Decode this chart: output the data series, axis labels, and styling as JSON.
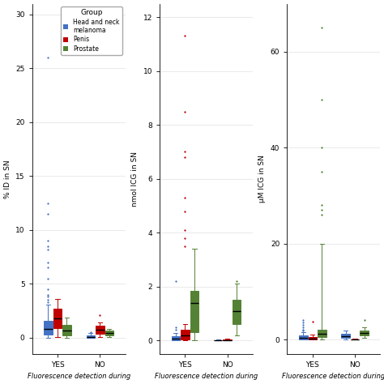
{
  "panels": [
    {
      "ylabel": "% ID in SN",
      "ylim": [
        -1.5,
        31
      ],
      "yticks": [
        0,
        5,
        10,
        15,
        20,
        25,
        30
      ],
      "groups": {
        "YES": {
          "blue": {
            "q1": 0.3,
            "med": 0.8,
            "q3": 1.6,
            "whislo": 0.0,
            "whishi": 3.1,
            "fliers": [
              26.0,
              12.5,
              11.5,
              9.0,
              8.5,
              8.2,
              7.0,
              6.5,
              5.5,
              4.5,
              4.0,
              3.8,
              3.5,
              3.3
            ]
          },
          "red": {
            "q1": 0.9,
            "med": 1.8,
            "q3": 2.7,
            "whislo": 0.05,
            "whishi": 3.6,
            "fliers": []
          },
          "green": {
            "q1": 0.2,
            "med": 0.7,
            "q3": 1.2,
            "whislo": 0.0,
            "whishi": 1.9,
            "fliers": []
          }
        },
        "NO": {
          "blue": {
            "q1": 0.0,
            "med": 0.1,
            "q3": 0.25,
            "whislo": 0.0,
            "whishi": 0.45,
            "fliers": [
              0.55
            ]
          },
          "red": {
            "q1": 0.4,
            "med": 0.75,
            "q3": 1.1,
            "whislo": 0.1,
            "whishi": 1.45,
            "fliers": [
              2.1
            ]
          },
          "green": {
            "q1": 0.2,
            "med": 0.45,
            "q3": 0.65,
            "whislo": 0.05,
            "whishi": 0.85,
            "fliers": []
          }
        }
      }
    },
    {
      "ylabel": "nmol ICG in SN",
      "ylim": [
        -0.5,
        12.5
      ],
      "yticks": [
        0,
        2,
        4,
        6,
        8,
        10,
        12
      ],
      "groups": {
        "YES": {
          "blue": {
            "q1": 0.02,
            "med": 0.06,
            "q3": 0.15,
            "whislo": 0.0,
            "whishi": 0.28,
            "fliers": [
              2.2,
              0.5,
              0.4
            ]
          },
          "red": {
            "q1": 0.05,
            "med": 0.18,
            "q3": 0.4,
            "whislo": 0.0,
            "whishi": 0.6,
            "fliers": [
              11.3,
              8.5,
              7.0,
              6.8,
              5.3,
              4.8,
              4.1,
              3.8,
              3.5
            ]
          },
          "green": {
            "q1": 0.3,
            "med": 1.4,
            "q3": 1.85,
            "whislo": 0.0,
            "whishi": 3.4,
            "fliers": []
          }
        },
        "NO": {
          "blue": {
            "q1": 0.0,
            "med": 0.01,
            "q3": 0.02,
            "whislo": 0.0,
            "whishi": 0.04,
            "fliers": []
          },
          "red": {
            "q1": 0.01,
            "med": 0.02,
            "q3": 0.04,
            "whislo": 0.0,
            "whishi": 0.06,
            "fliers": []
          },
          "green": {
            "q1": 0.6,
            "med": 1.1,
            "q3": 1.5,
            "whislo": 0.2,
            "whishi": 2.1,
            "fliers": [
              2.2
            ]
          }
        }
      }
    },
    {
      "ylabel": "μM ICG in SN",
      "ylim": [
        -3,
        70
      ],
      "yticks": [
        0,
        20,
        40,
        60
      ],
      "groups": {
        "YES": {
          "blue": {
            "q1": 0.1,
            "med": 0.4,
            "q3": 0.9,
            "whislo": 0.0,
            "whishi": 1.5,
            "fliers": [
              4.0,
              3.5,
              3.0,
              2.5,
              2.0,
              1.8
            ]
          },
          "red": {
            "q1": 0.05,
            "med": 0.2,
            "q3": 0.6,
            "whislo": 0.0,
            "whishi": 1.1,
            "fliers": [
              3.8
            ]
          },
          "green": {
            "q1": 0.5,
            "med": 1.2,
            "q3": 2.0,
            "whislo": 0.0,
            "whishi": 20.0,
            "fliers": [
              65.0,
              50.0,
              40.0,
              35.0,
              28.0,
              27.0,
              26.0
            ]
          }
        },
        "NO": {
          "blue": {
            "q1": 0.3,
            "med": 0.7,
            "q3": 1.2,
            "whislo": 0.0,
            "whishi": 1.8,
            "fliers": []
          },
          "red": {
            "q1": 0.0,
            "med": 0.02,
            "q3": 0.08,
            "whislo": 0.0,
            "whishi": 0.12,
            "fliers": []
          },
          "green": {
            "q1": 0.8,
            "med": 1.3,
            "q3": 1.9,
            "whislo": 0.3,
            "whishi": 2.5,
            "fliers": [
              4.0
            ]
          }
        }
      }
    }
  ],
  "colors": {
    "blue": "#4472C4",
    "red": "#C00000",
    "green": "#548235"
  },
  "legend_labels": [
    "Head and neck\nmelanoma",
    "Penis",
    "Prostate"
  ],
  "xlabel": "Fluorescence detection during",
  "background": "#ffffff",
  "box_width": 0.2,
  "fontsize": 6.5
}
